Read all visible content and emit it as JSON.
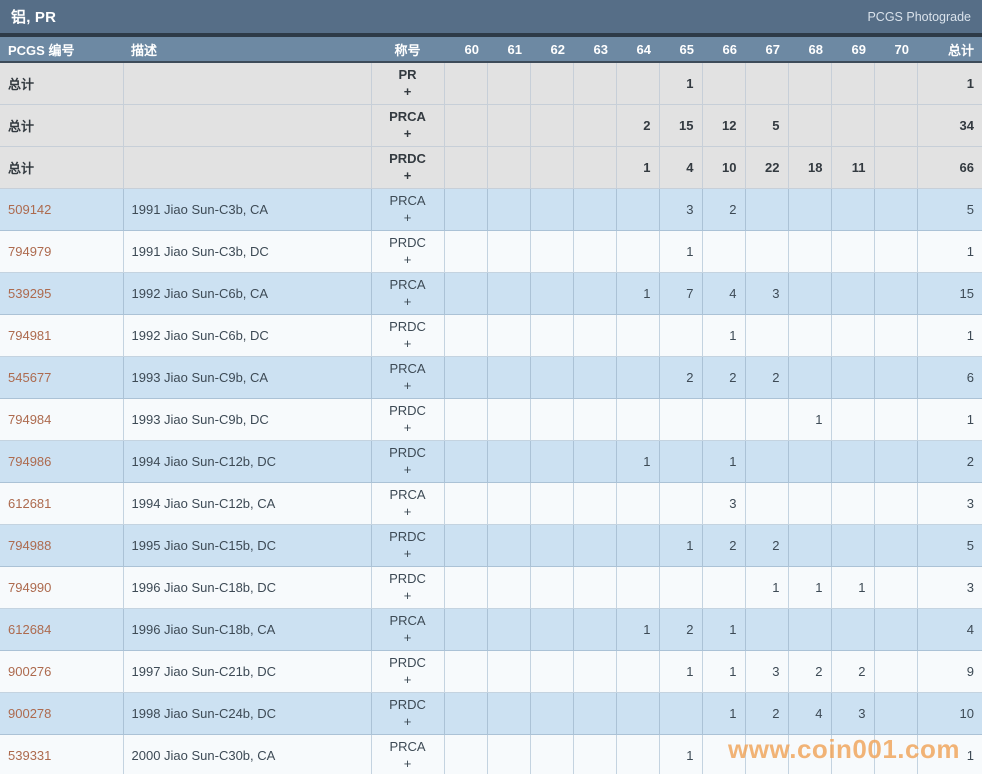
{
  "title_bar": {
    "title": "铝, PR",
    "right_link": "PCGS Photograde"
  },
  "watermark": "www.coin001.com",
  "colors": {
    "title_bar_bg": "#566e87",
    "header_bg": "#6d89a3",
    "total_row_bg": "#e2e2e2",
    "row_blue": "#cce1f2",
    "row_white": "#f7fafc",
    "pcgs_number_link": "#ad6a4e",
    "watermark": "#f0a255"
  },
  "table": {
    "headers": {
      "id": "PCGS 编号",
      "description": "描述",
      "designation": "称号",
      "total": "总计"
    },
    "grade_columns": [
      "60",
      "61",
      "62",
      "63",
      "64",
      "65",
      "66",
      "67",
      "68",
      "69",
      "70"
    ],
    "total_label": "总计",
    "plus": "+",
    "rows": [
      {
        "type": "total",
        "id": "",
        "description": "",
        "designation": "PR",
        "shade": "gray",
        "grades": [
          "",
          "",
          "",
          "",
          "",
          "1",
          "",
          "",
          "",
          "",
          ""
        ],
        "total": "1"
      },
      {
        "type": "total",
        "id": "",
        "description": "",
        "designation": "PRCA",
        "shade": "gray",
        "grades": [
          "",
          "",
          "",
          "",
          "2",
          "15",
          "12",
          "5",
          "",
          "",
          ""
        ],
        "total": "34"
      },
      {
        "type": "total",
        "id": "",
        "description": "",
        "designation": "PRDC",
        "shade": "gray",
        "grades": [
          "",
          "",
          "",
          "",
          "1",
          "4",
          "10",
          "22",
          "18",
          "11",
          ""
        ],
        "total": "66"
      },
      {
        "type": "data",
        "id": "509142",
        "description": "1991 Jiao Sun-C3b, CA",
        "designation": "PRCA",
        "shade": "blue",
        "grades": [
          "",
          "",
          "",
          "",
          "",
          "3",
          "2",
          "",
          "",
          "",
          ""
        ],
        "total": "5"
      },
      {
        "type": "data",
        "id": "794979",
        "description": "1991 Jiao Sun-C3b, DC",
        "designation": "PRDC",
        "shade": "white",
        "grades": [
          "",
          "",
          "",
          "",
          "",
          "1",
          "",
          "",
          "",
          "",
          ""
        ],
        "total": "1"
      },
      {
        "type": "data",
        "id": "539295",
        "description": "1992 Jiao Sun-C6b, CA",
        "designation": "PRCA",
        "shade": "blue",
        "grades": [
          "",
          "",
          "",
          "",
          "1",
          "7",
          "4",
          "3",
          "",
          "",
          ""
        ],
        "total": "15"
      },
      {
        "type": "data",
        "id": "794981",
        "description": "1992 Jiao Sun-C6b, DC",
        "designation": "PRDC",
        "shade": "white",
        "grades": [
          "",
          "",
          "",
          "",
          "",
          "",
          "1",
          "",
          "",
          "",
          ""
        ],
        "total": "1"
      },
      {
        "type": "data",
        "id": "545677",
        "description": "1993 Jiao Sun-C9b, CA",
        "designation": "PRCA",
        "shade": "blue",
        "grades": [
          "",
          "",
          "",
          "",
          "",
          "2",
          "2",
          "2",
          "",
          "",
          ""
        ],
        "total": "6"
      },
      {
        "type": "data",
        "id": "794984",
        "description": "1993 Jiao Sun-C9b, DC",
        "designation": "PRDC",
        "shade": "white",
        "grades": [
          "",
          "",
          "",
          "",
          "",
          "",
          "",
          "",
          "1",
          "",
          ""
        ],
        "total": "1"
      },
      {
        "type": "data",
        "id": "794986",
        "description": "1994 Jiao Sun-C12b, DC",
        "designation": "PRDC",
        "shade": "blue",
        "grades": [
          "",
          "",
          "",
          "",
          "1",
          "",
          "1",
          "",
          "",
          "",
          ""
        ],
        "total": "2"
      },
      {
        "type": "data",
        "id": "612681",
        "description": "1994 Jiao Sun-C12b, CA",
        "designation": "PRCA",
        "shade": "white",
        "grades": [
          "",
          "",
          "",
          "",
          "",
          "",
          "3",
          "",
          "",
          "",
          ""
        ],
        "total": "3"
      },
      {
        "type": "data",
        "id": "794988",
        "description": "1995 Jiao Sun-C15b, DC",
        "designation": "PRDC",
        "shade": "blue",
        "grades": [
          "",
          "",
          "",
          "",
          "",
          "1",
          "2",
          "2",
          "",
          "",
          ""
        ],
        "total": "5"
      },
      {
        "type": "data",
        "id": "794990",
        "description": "1996 Jiao Sun-C18b, DC",
        "designation": "PRDC",
        "shade": "white",
        "grades": [
          "",
          "",
          "",
          "",
          "",
          "",
          "",
          "1",
          "1",
          "1",
          ""
        ],
        "total": "3"
      },
      {
        "type": "data",
        "id": "612684",
        "description": "1996 Jiao Sun-C18b, CA",
        "designation": "PRCA",
        "shade": "blue",
        "grades": [
          "",
          "",
          "",
          "",
          "1",
          "2",
          "1",
          "",
          "",
          "",
          ""
        ],
        "total": "4"
      },
      {
        "type": "data",
        "id": "900276",
        "description": "1997 Jiao Sun-C21b, DC",
        "designation": "PRDC",
        "shade": "white",
        "grades": [
          "",
          "",
          "",
          "",
          "",
          "1",
          "1",
          "3",
          "2",
          "2",
          ""
        ],
        "total": "9"
      },
      {
        "type": "data",
        "id": "900278",
        "description": "1998 Jiao Sun-C24b, DC",
        "designation": "PRDC",
        "shade": "blue",
        "grades": [
          "",
          "",
          "",
          "",
          "",
          "",
          "1",
          "2",
          "4",
          "3",
          ""
        ],
        "total": "10"
      },
      {
        "type": "data",
        "id": "539331",
        "description": "2000 Jiao Sun-C30b, CA",
        "designation": "PRCA",
        "shade": "white",
        "grades": [
          "",
          "",
          "",
          "",
          "",
          "1",
          "",
          "",
          "",
          "",
          ""
        ],
        "total": "1"
      }
    ]
  }
}
